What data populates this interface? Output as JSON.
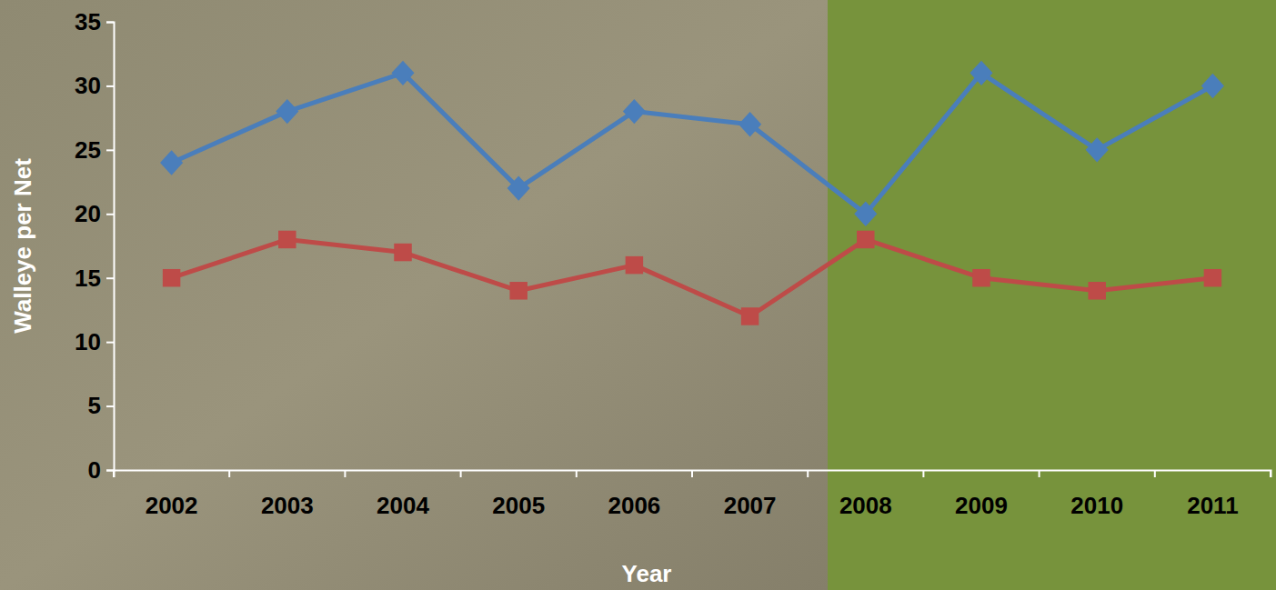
{
  "chart_data": {
    "type": "line",
    "x_label": "Year",
    "y_label": "Walleye per Net",
    "categories": [
      "2002",
      "2003",
      "2004",
      "2005",
      "2006",
      "2007",
      "2008",
      "2009",
      "2010",
      "2011"
    ],
    "series": [
      {
        "color": "#4a7ebb",
        "marker": "diamond",
        "values": [
          24,
          28,
          31,
          22,
          28,
          27,
          20,
          31,
          25,
          30
        ]
      },
      {
        "color": "#be4b48",
        "marker": "square",
        "values": [
          15,
          18,
          17,
          14,
          16,
          12,
          18,
          15,
          14,
          15
        ]
      }
    ],
    "ylim": [
      0,
      35
    ],
    "yticks": [
      0,
      5,
      10,
      15,
      20,
      25,
      30,
      35
    ],
    "grid": false
  }
}
